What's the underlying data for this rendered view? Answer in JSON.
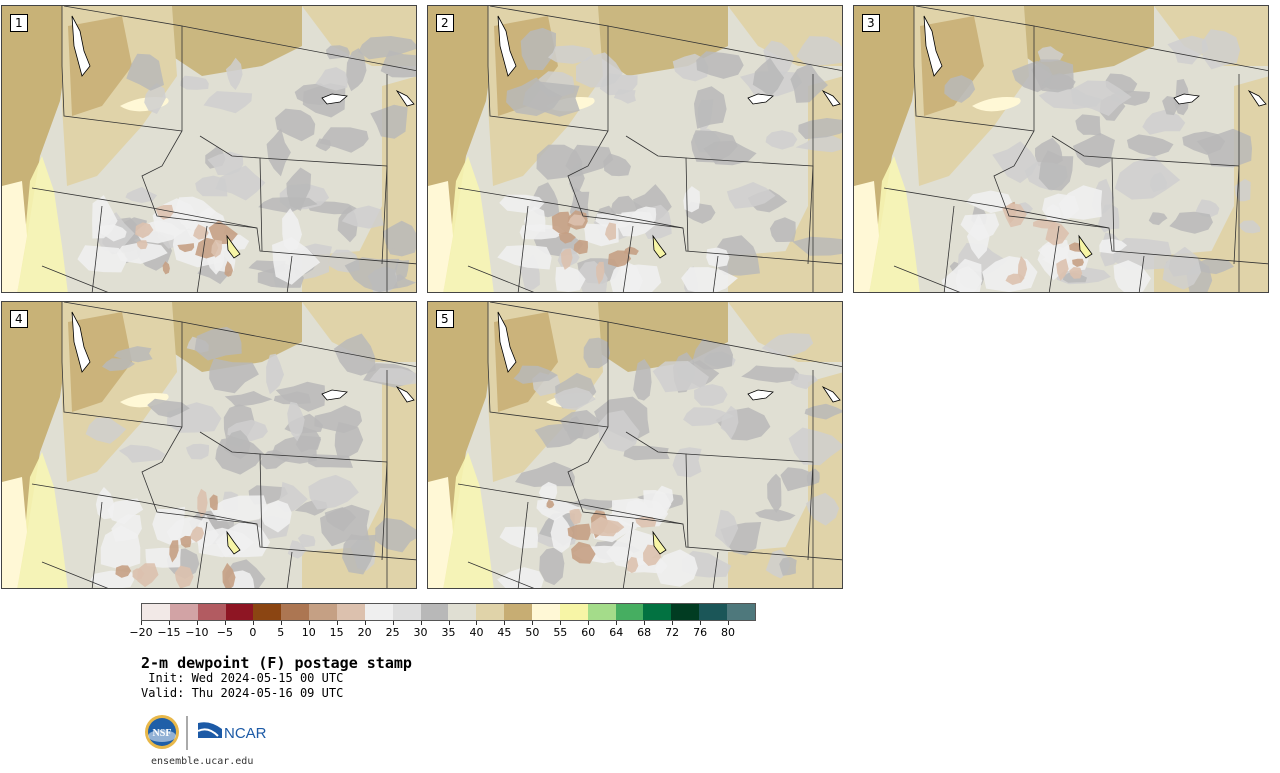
{
  "panels": [
    {
      "label": "1"
    },
    {
      "label": "2"
    },
    {
      "label": "3"
    },
    {
      "label": "4"
    },
    {
      "label": "5"
    }
  ],
  "colorbar": {
    "colors": [
      "#f2e9e7",
      "#d2a3a5",
      "#b25b61",
      "#8e1523",
      "#8b4512",
      "#ac7652",
      "#c5a084",
      "#dcc1ae",
      "#efefef",
      "#dedede",
      "#b8b8b8",
      "#e0dfd3",
      "#e0d3a9",
      "#c7ad73",
      "#fff8d6",
      "#f7f5a6",
      "#a4dc8a",
      "#46ae61",
      "#027241",
      "#013c22",
      "#1b5658",
      "#4e787c"
    ],
    "ticks": [
      "−20",
      "−15",
      "−10",
      "−5",
      "0",
      "5",
      "10",
      "15",
      "20",
      "25",
      "30",
      "35",
      "40",
      "45",
      "50",
      "55",
      "60",
      "64",
      "68",
      "72",
      "76",
      "80"
    ]
  },
  "title": "2-m dewpoint (F) postage stamp",
  "init": " Init: Wed 2024-05-15 00 UTC",
  "valid": "Valid: Thu 2024-05-16 09 UTC",
  "logos": {
    "nsf": "NSF",
    "ncar": "NCAR"
  },
  "url": "ensemble.ucar.edu"
}
